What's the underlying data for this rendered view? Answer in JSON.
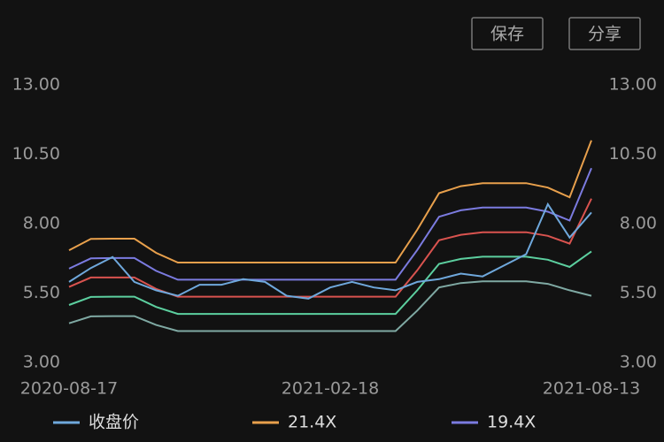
{
  "buttons": {
    "save": "保存",
    "share": "分享"
  },
  "chart_data": {
    "type": "line",
    "categories": [
      "2020-08-17",
      null,
      null,
      null,
      null,
      null,
      null,
      null,
      null,
      null,
      null,
      null,
      "2021-02-18",
      null,
      null,
      null,
      null,
      null,
      null,
      null,
      null,
      null,
      null,
      null,
      "2021-08-13"
    ],
    "ylim": [
      3,
      13
    ],
    "yticks": [
      {
        "value": 3,
        "label": "3.00"
      },
      {
        "value": 5.5,
        "label": "5.50"
      },
      {
        "value": 8,
        "label": "8.00"
      },
      {
        "value": 10.5,
        "label": "10.50"
      },
      {
        "value": 13,
        "label": "13.00"
      }
    ],
    "series": [
      {
        "color": "#7fa9a3",
        "values": [
          4.41,
          4.66,
          4.67,
          4.67,
          4.35,
          4.13,
          4.13,
          4.13,
          4.13,
          4.13,
          4.13,
          4.13,
          4.13,
          4.13,
          4.13,
          4.13,
          4.87,
          5.7,
          5.86,
          5.92,
          5.92,
          5.92,
          5.83,
          5.6,
          5.4
        ]
      },
      {
        "color": "#5ccf9f",
        "values": [
          5.07,
          5.36,
          5.37,
          5.37,
          5.0,
          4.75,
          4.75,
          4.75,
          4.75,
          4.75,
          4.75,
          4.75,
          4.75,
          4.75,
          4.75,
          4.75,
          5.6,
          6.55,
          6.73,
          6.81,
          6.81,
          6.81,
          6.7,
          6.44,
          7.0
        ]
      },
      {
        "color": "#d9534f",
        "values": [
          5.72,
          6.06,
          6.06,
          6.06,
          5.65,
          5.37,
          5.37,
          5.37,
          5.37,
          5.37,
          5.37,
          5.37,
          5.37,
          5.37,
          5.37,
          5.37,
          6.32,
          7.4,
          7.6,
          7.69,
          7.69,
          7.69,
          7.56,
          7.28,
          8.9
        ]
      },
      {
        "name": "19.4X",
        "color": "#7b7be0",
        "values": [
          6.38,
          6.75,
          6.76,
          6.76,
          6.3,
          5.98,
          5.98,
          5.98,
          5.98,
          5.98,
          5.98,
          5.98,
          5.98,
          5.98,
          5.98,
          5.98,
          7.05,
          8.25,
          8.48,
          8.58,
          8.58,
          8.58,
          8.43,
          8.11,
          10.0
        ]
      },
      {
        "name": "21.4X",
        "color": "#e8a04c",
        "values": [
          7.04,
          7.45,
          7.46,
          7.46,
          6.95,
          6.6,
          6.6,
          6.6,
          6.6,
          6.6,
          6.6,
          6.6,
          6.6,
          6.6,
          6.6,
          6.6,
          7.78,
          9.1,
          9.35,
          9.46,
          9.46,
          9.46,
          9.3,
          8.95,
          11.0
        ]
      },
      {
        "name": "收盘价",
        "color": "#6fa8dc",
        "values": [
          5.9,
          6.4,
          6.8,
          5.9,
          5.6,
          5.4,
          5.8,
          5.8,
          6.0,
          5.9,
          5.4,
          5.3,
          5.7,
          5.9,
          5.7,
          5.6,
          5.9,
          6.0,
          6.2,
          6.1,
          6.5,
          6.9,
          8.7,
          7.5,
          8.4
        ]
      }
    ],
    "legend_order": [
      5,
      4,
      3
    ]
  }
}
